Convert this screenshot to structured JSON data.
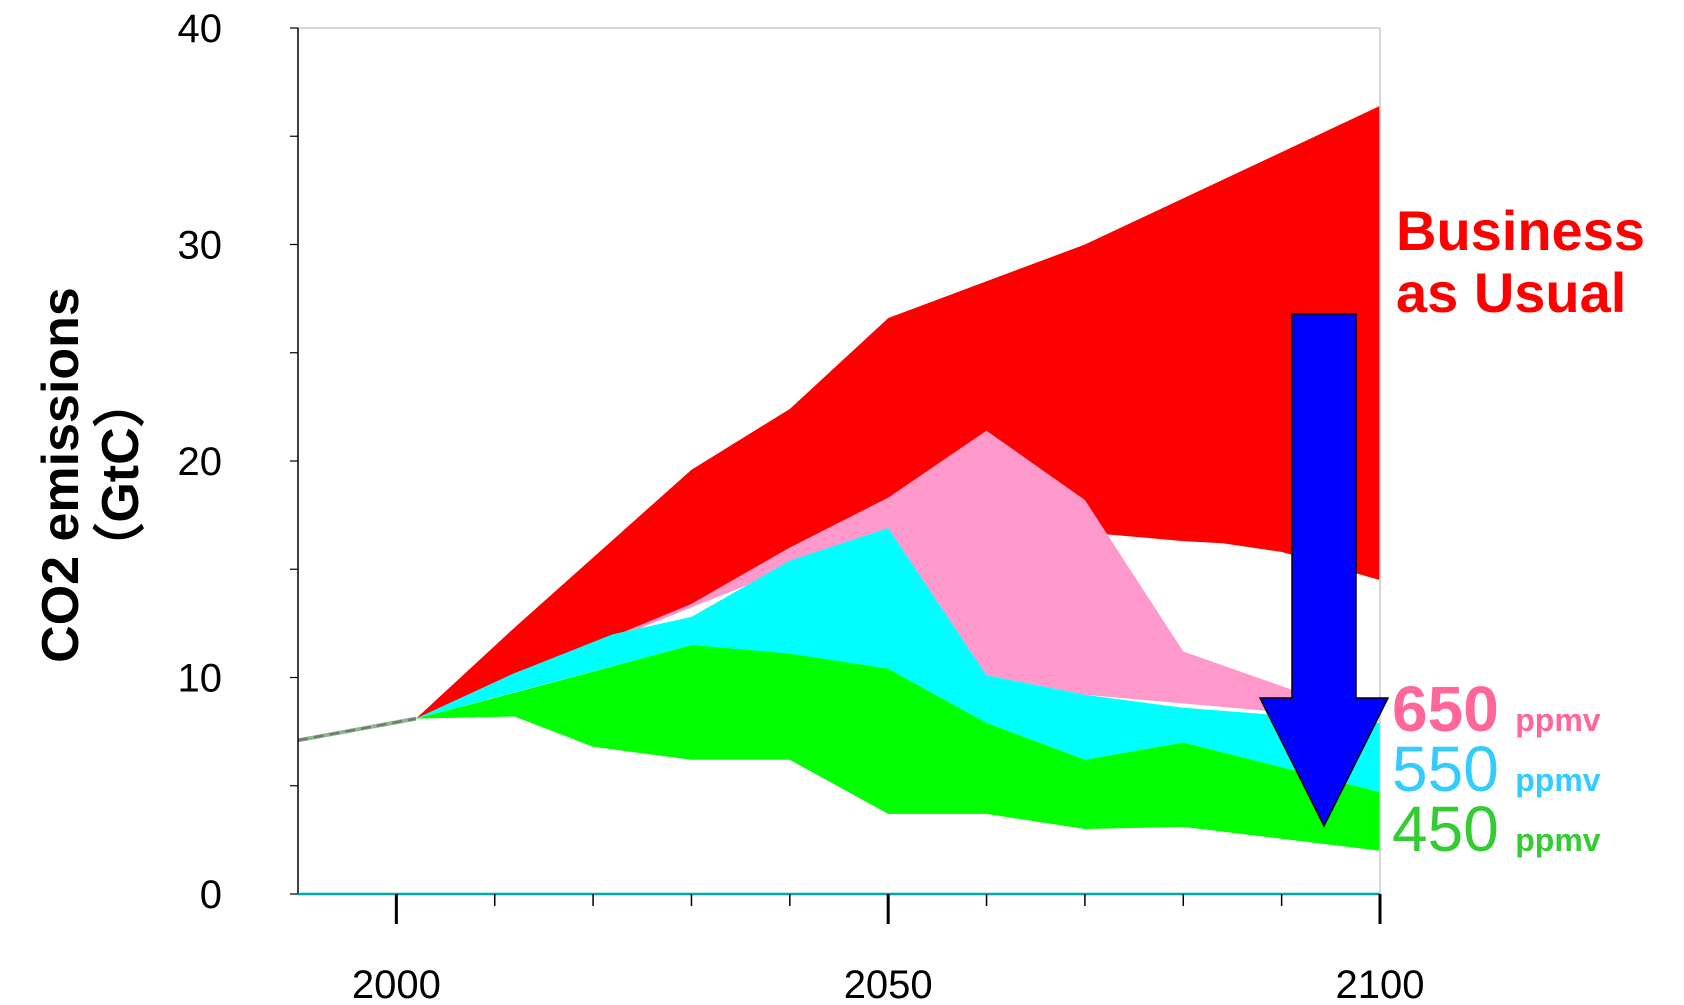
{
  "chart_data": {
    "type": "area",
    "ylabel_line1": "CO2 emissions",
    "ylabel_line2": "（GtC）",
    "xlim": [
      1990,
      2100
    ],
    "ylim": [
      0,
      40
    ],
    "x_ticks": [
      2000,
      2050,
      2100
    ],
    "x_tick_labels": [
      "2000",
      "2050",
      "2100"
    ],
    "y_ticks": [
      0,
      10,
      20,
      30,
      40
    ],
    "y_tick_labels": [
      "0",
      "10",
      "20",
      "30",
      "40"
    ],
    "grid": false,
    "historical": {
      "x": [
        1990,
        2002
      ],
      "y": [
        7.1,
        8.1
      ]
    },
    "bands": [
      {
        "name": "Business as Usual",
        "color": "#ff0000",
        "upper": {
          "x": [
            2002,
            2012,
            2030,
            2040,
            2050,
            2070,
            2100
          ],
          "y": [
            8.1,
            12.3,
            19.6,
            22.4,
            26.6,
            30.0,
            36.4
          ]
        },
        "lower": {
          "x": [
            2002,
            2012,
            2022,
            2024,
            2030,
            2040,
            2050,
            2060,
            2070,
            2080,
            2084,
            2090,
            2100
          ],
          "y": [
            8.1,
            10.2,
            11.9,
            12.1,
            13.4,
            16.0,
            18.3,
            21.4,
            16.7,
            16.3,
            16.2,
            15.8,
            14.5
          ]
        }
      },
      {
        "name": "650 ppmv",
        "color": "#ff99cc",
        "upper": {
          "x": [
            2002,
            2022,
            2030,
            2040,
            2050,
            2060,
            2070,
            2080,
            2100
          ],
          "y": [
            8.1,
            11.9,
            13.4,
            16.0,
            18.3,
            21.4,
            18.2,
            11.2,
            8.0
          ]
        },
        "lower": {
          "x": [
            2002,
            2050,
            2060,
            2070,
            2100
          ],
          "y": [
            8.1,
            16.9,
            10.1,
            9.2,
            8.0
          ]
        }
      },
      {
        "name": "550 ppmv",
        "color": "#00ffff",
        "upper": {
          "x": [
            2002,
            2012,
            2022,
            2030,
            2040,
            2050,
            2060,
            2070,
            2080,
            2100
          ],
          "y": [
            8.1,
            10.2,
            12.0,
            12.8,
            15.4,
            16.9,
            10.1,
            9.2,
            8.6,
            7.9
          ]
        },
        "lower": {
          "x": [
            2002,
            2030,
            2050,
            2060,
            2070,
            2080,
            2100
          ],
          "y": [
            8.1,
            11.5,
            10.4,
            7.9,
            6.2,
            7.0,
            4.7
          ]
        }
      },
      {
        "name": "450 ppmv",
        "color": "#00ff00",
        "upper": {
          "x": [
            2002,
            2012,
            2030,
            2040,
            2050,
            2060,
            2070,
            2080,
            2100
          ],
          "y": [
            8.1,
            9.3,
            11.5,
            11.1,
            10.4,
            7.9,
            6.2,
            7.0,
            4.7
          ]
        },
        "lower": {
          "x": [
            2002,
            2012,
            2020,
            2030,
            2040,
            2050,
            2060,
            2070,
            2080,
            2100
          ],
          "y": [
            8.1,
            8.2,
            6.8,
            6.2,
            6.2,
            3.7,
            3.7,
            3.0,
            3.1,
            2.0
          ]
        }
      }
    ],
    "annotations": {
      "bau_line1": "Business",
      "bau_line2": "as Usual",
      "arrow_color": "#0000ff",
      "labels": [
        {
          "number": "650",
          "unit": "ppmv",
          "color": "#ff6699"
        },
        {
          "number": "550",
          "unit": "ppmv",
          "color": "#33ccff"
        },
        {
          "number": "450",
          "unit": "ppmv",
          "color": "#33cc33"
        }
      ]
    }
  }
}
